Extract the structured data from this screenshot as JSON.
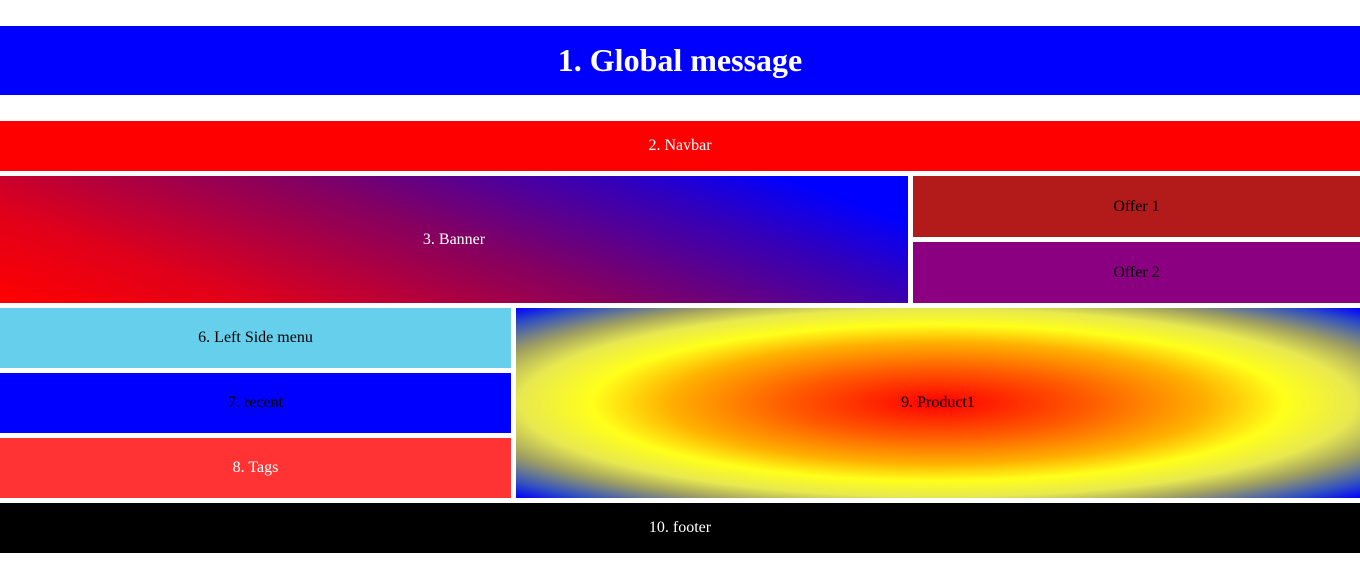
{
  "global_message": "1. Global message",
  "navbar": "2. Navbar",
  "banner": "3. Banner",
  "offers": [
    "Offer 1",
    "Offer 2"
  ],
  "left_side_menu": "6. Left Side menu",
  "recent": "7. recent",
  "tags": "8. Tags",
  "product": "9. Product1",
  "footer": "10. footer",
  "colors": {
    "global": "#0000ff",
    "navbar": "#ff0000",
    "offer1": "#b31b1b",
    "offer2": "#8b0081",
    "left_menu": "#66cfec",
    "recent": "#0000ff",
    "tags": "#ff3333",
    "footer": "#000000"
  }
}
